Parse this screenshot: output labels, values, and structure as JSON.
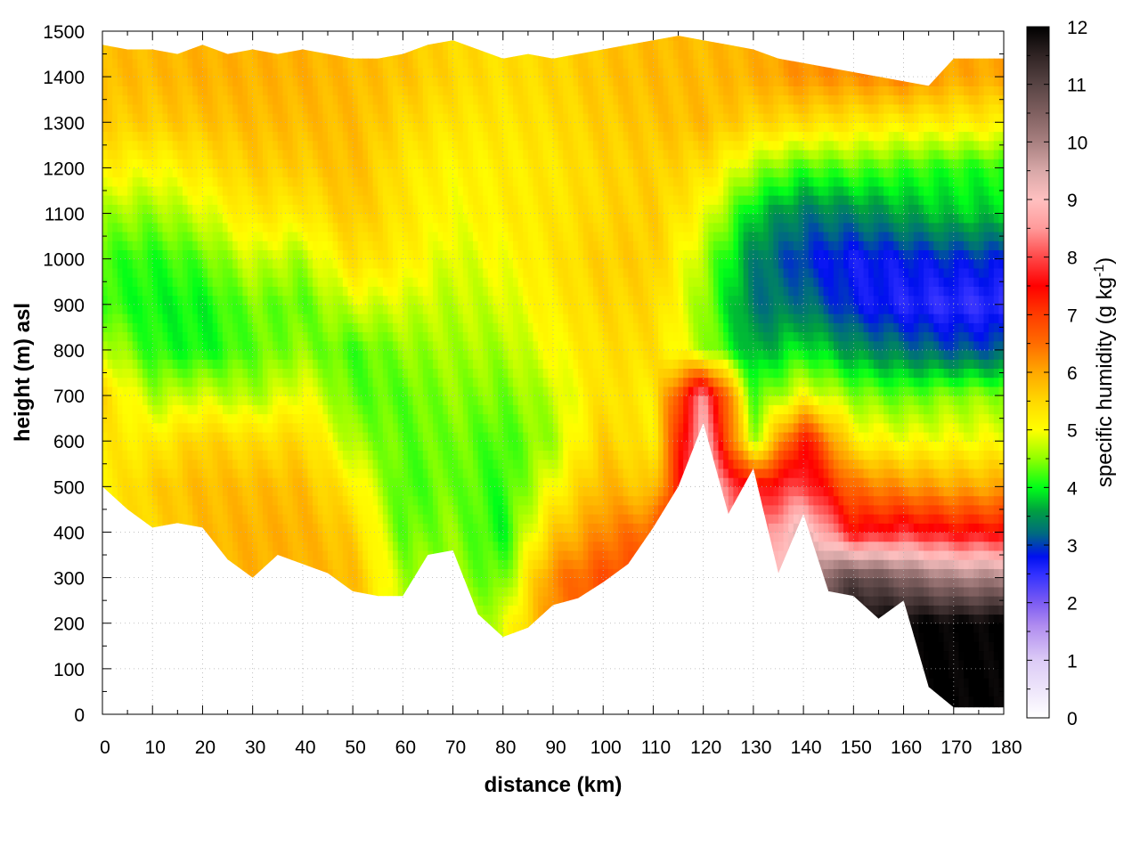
{
  "chart_data": {
    "type": "heatmap",
    "title": "",
    "xlabel": "distance (km)",
    "ylabel": "height (m) asl",
    "colorbar_label": "specific humidity (g kg",
    "colorbar_label_sup": "-1",
    "colorbar_label_end": ")",
    "xlim": [
      0,
      180
    ],
    "ylim": [
      0,
      1500
    ],
    "clim": [
      0,
      12
    ],
    "grid": true,
    "xticks": [
      "0",
      "10",
      "20",
      "30",
      "40",
      "50",
      "60",
      "70",
      "80",
      "90",
      "100",
      "110",
      "120",
      "130",
      "140",
      "150",
      "160",
      "170",
      "180"
    ],
    "yticks": [
      "0",
      "100",
      "200",
      "300",
      "400",
      "500",
      "600",
      "700",
      "800",
      "900",
      "1000",
      "1100",
      "1200",
      "1300",
      "1400",
      "1500"
    ],
    "cticks": [
      "0",
      "1",
      "2",
      "3",
      "4",
      "5",
      "6",
      "7",
      "8",
      "9",
      "10",
      "11",
      "12"
    ],
    "colormap": [
      [
        0,
        "#ffffff"
      ],
      [
        1,
        "#dccbf6"
      ],
      [
        1.6,
        "#b08cf0"
      ],
      [
        2,
        "#7c5cf2"
      ],
      [
        2.5,
        "#3030ff"
      ],
      [
        2.8,
        "#0010f0"
      ],
      [
        3.2,
        "#006a80"
      ],
      [
        3.6,
        "#00a040"
      ],
      [
        4,
        "#00ff18"
      ],
      [
        4.5,
        "#90ff00"
      ],
      [
        5,
        "#ffff00"
      ],
      [
        5.5,
        "#ffd800"
      ],
      [
        6,
        "#ffa800"
      ],
      [
        6.5,
        "#ff6c00"
      ],
      [
        7,
        "#ff3c00"
      ],
      [
        7.5,
        "#ff0000"
      ],
      [
        8,
        "#ff4848"
      ],
      [
        8.5,
        "#ff9a9a"
      ],
      [
        9,
        "#ffc0c0"
      ],
      [
        9.5,
        "#d8a8a8"
      ],
      [
        10,
        "#a88080"
      ],
      [
        10.5,
        "#806060"
      ],
      [
        11,
        "#584444"
      ],
      [
        11.5,
        "#302424"
      ],
      [
        12,
        "#000000"
      ]
    ],
    "grid_x_km": [
      0,
      10,
      20,
      30,
      40,
      50,
      60,
      70,
      80,
      90,
      100,
      110,
      120,
      130,
      140,
      150,
      160,
      170,
      180
    ],
    "grid_z_m": [
      0,
      100,
      200,
      300,
      400,
      500,
      600,
      700,
      800,
      900,
      1000,
      1100,
      1200,
      1300,
      1400,
      1500
    ],
    "humidity_g_per_kg": [
      [
        5.2,
        5.2,
        5.2,
        5.2,
        5.2,
        5.2,
        5.3,
        5.5,
        4.8,
        4.2,
        4.2,
        4.6,
        5.2,
        5.6,
        5.8,
        5.8
      ],
      [
        5.5,
        5.5,
        5.5,
        5.5,
        5.5,
        5.6,
        5.2,
        4.6,
        4.1,
        4.0,
        4.1,
        4.5,
        5.0,
        5.6,
        5.8,
        5.8
      ],
      [
        5.8,
        5.8,
        5.8,
        5.8,
        5.8,
        5.8,
        5.6,
        4.8,
        4.0,
        4.0,
        4.3,
        4.8,
        5.3,
        5.7,
        5.9,
        5.9
      ],
      [
        5.9,
        5.9,
        5.9,
        5.9,
        5.9,
        5.8,
        5.4,
        4.6,
        4.3,
        4.4,
        4.8,
        5.3,
        5.6,
        5.8,
        5.9,
        5.9
      ],
      [
        5.9,
        5.9,
        5.9,
        5.9,
        5.9,
        5.8,
        5.5,
        5.0,
        4.5,
        4.3,
        4.6,
        5.2,
        5.6,
        5.8,
        5.9,
        5.9
      ],
      [
        5.8,
        5.8,
        5.8,
        5.8,
        5.6,
        5.2,
        4.6,
        4.3,
        4.2,
        4.8,
        5.4,
        5.7,
        5.8,
        5.8,
        5.8,
        5.8
      ],
      [
        4.6,
        4.6,
        4.6,
        4.6,
        4.3,
        4.2,
        4.3,
        4.3,
        4.5,
        4.8,
        5.2,
        5.3,
        5.3,
        5.5,
        5.7,
        5.7
      ],
      [
        4.5,
        4.5,
        4.5,
        4.5,
        4.5,
        4.4,
        4.4,
        4.5,
        4.6,
        4.7,
        4.8,
        5.0,
        5.1,
        5.3,
        5.5,
        5.5
      ],
      [
        4.8,
        4.8,
        4.8,
        4.3,
        4.0,
        4.1,
        4.2,
        4.4,
        4.6,
        4.8,
        5.0,
        5.2,
        5.2,
        5.3,
        5.4,
        5.4
      ],
      [
        6.3,
        6.3,
        6.3,
        6.3,
        5.6,
        5.0,
        4.6,
        4.7,
        5.0,
        5.2,
        5.3,
        5.3,
        5.3,
        5.4,
        5.5,
        5.5
      ],
      [
        6.8,
        6.8,
        6.8,
        6.8,
        6.3,
        5.9,
        5.6,
        5.4,
        5.4,
        5.5,
        5.6,
        5.5,
        5.5,
        5.6,
        5.7,
        5.7
      ],
      [
        6.9,
        6.9,
        6.9,
        6.9,
        6.6,
        5.6,
        5.2,
        5.2,
        5.4,
        5.5,
        5.6,
        5.6,
        5.6,
        5.7,
        5.8,
        5.8
      ],
      [
        9.0,
        9.0,
        9.0,
        9.0,
        9.0,
        9.0,
        9.0,
        8.5,
        4.6,
        4.5,
        4.6,
        5.0,
        5.4,
        5.8,
        5.8,
        5.8
      ],
      [
        8.0,
        8.0,
        8.0,
        8.0,
        8.0,
        7.5,
        4.5,
        4.2,
        3.6,
        3.3,
        3.4,
        3.8,
        4.6,
        5.5,
        5.9,
        5.9
      ],
      [
        10.5,
        10.5,
        10.5,
        10.0,
        9.5,
        8.0,
        7.5,
        5.0,
        4.0,
        3.3,
        2.9,
        3.3,
        4.2,
        5.4,
        6.2,
        6.2
      ],
      [
        12,
        12,
        12,
        11,
        7.5,
        6.5,
        5.2,
        4.5,
        3.5,
        2.8,
        2.7,
        3.4,
        4.3,
        5.3,
        6.2,
        6.2
      ],
      [
        12,
        12,
        12,
        10.5,
        7.8,
        6.2,
        5.0,
        4.3,
        3.3,
        2.6,
        2.8,
        3.6,
        4.2,
        5.2,
        6.3,
        6.3
      ],
      [
        12,
        12,
        12,
        10,
        7.5,
        6.0,
        5.0,
        4.5,
        3.1,
        2.5,
        2.9,
        3.8,
        4.1,
        5.2,
        6.0,
        6.0
      ],
      [
        12,
        12,
        12,
        10,
        7.5,
        6.0,
        5.0,
        4.5,
        3.1,
        2.5,
        2.9,
        3.8,
        4.1,
        5.2,
        6.0,
        6.0
      ]
    ],
    "terrain_x_km": [
      0,
      5,
      10,
      15,
      20,
      25,
      30,
      35,
      40,
      45,
      50,
      55,
      60,
      65,
      70,
      75,
      80,
      85,
      90,
      95,
      100,
      105,
      110,
      115,
      120,
      125,
      130,
      135,
      140,
      145,
      150,
      155,
      160,
      165,
      170,
      175,
      180
    ],
    "terrain_height_m": [
      500,
      450,
      410,
      420,
      410,
      340,
      300,
      350,
      330,
      310,
      270,
      260,
      260,
      350,
      360,
      220,
      170,
      190,
      240,
      255,
      290,
      330,
      410,
      500,
      640,
      440,
      540,
      310,
      440,
      270,
      260,
      210,
      250,
      60,
      15,
      15,
      15
    ],
    "data_top_m": [
      1470,
      1460,
      1460,
      1450,
      1470,
      1450,
      1460,
      1450,
      1460,
      1450,
      1440,
      1440,
      1450,
      1470,
      1480,
      1460,
      1440,
      1450,
      1440,
      1450,
      1460,
      1470,
      1480,
      1490,
      1480,
      1470,
      1460,
      1440,
      1430,
      1420,
      1410,
      1400,
      1390,
      1380,
      1440,
      1440,
      1440
    ]
  }
}
